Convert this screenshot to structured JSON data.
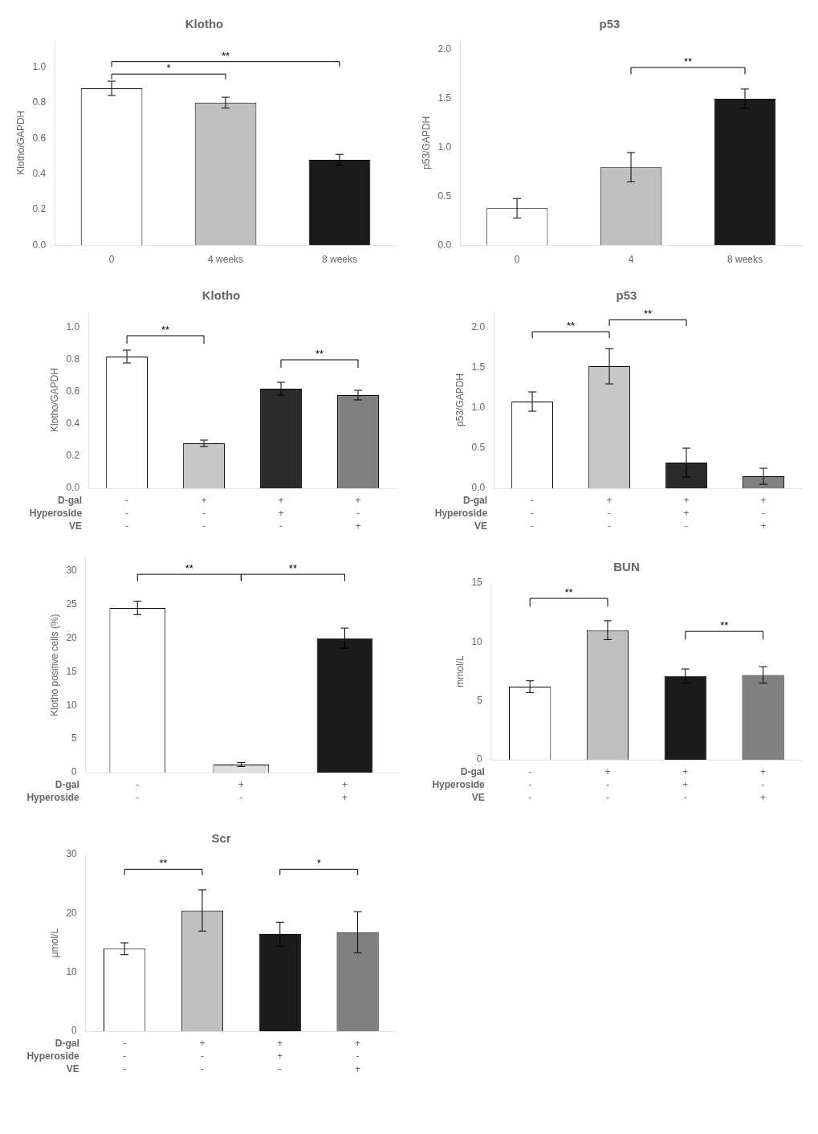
{
  "chart_data": [
    {
      "type": "bar",
      "title": "Klotho",
      "ylabel": "Klotho/GAPDH",
      "categories": [
        "0",
        "4 weeks",
        "8 weeks"
      ],
      "values": [
        0.88,
        0.8,
        0.48
      ],
      "errors": [
        0.04,
        0.03,
        0.03
      ],
      "colors": [
        "white",
        "#c0c0c0",
        "#1a1a1a"
      ],
      "ylim": [
        0.0,
        1.15
      ],
      "yticks": [
        {
          "value": 0,
          "label": "0.0"
        },
        0.2,
        0.4,
        0.6,
        0.8,
        {
          "value": 1,
          "label": "1.0"
        }
      ],
      "grid": false,
      "annotations": [
        {
          "text": "*",
          "between": [
            0,
            1
          ],
          "y_start": 0.93,
          "y": 0.96
        },
        {
          "text": "**",
          "between": [
            0,
            2
          ],
          "y_start": 1.0,
          "y": 1.03
        }
      ]
    },
    {
      "type": "bar",
      "title": "p53",
      "ylabel": "p53/GAPDH",
      "categories": [
        "0",
        "4",
        "8 weeks"
      ],
      "values": [
        0.38,
        0.8,
        1.5
      ],
      "errors": [
        0.1,
        0.15,
        0.1
      ],
      "colors": [
        "white",
        "#c0c0c0",
        "#1a1a1a"
      ],
      "ylim": [
        0.0,
        2.1
      ],
      "yticks": [
        {
          "value": 0,
          "label": "0.0"
        },
        0.5,
        {
          "value": 1,
          "label": "1.0"
        },
        1.5,
        {
          "value": 2,
          "label": "2.0"
        }
      ],
      "grid": false,
      "annotations": [
        {
          "text": "**",
          "between": [
            1,
            2
          ],
          "y_start": 1.75,
          "y": 1.82
        }
      ]
    },
    {
      "type": "bar",
      "title": "Klotho",
      "ylabel": "Klotho/GAPDH",
      "category_rows": [
        "D-gal",
        "Hyperoside",
        "VE"
      ],
      "categories": [
        [
          "-",
          "-",
          "-"
        ],
        [
          "+",
          "-",
          "-"
        ],
        [
          "+",
          "+",
          "-"
        ],
        [
          "+",
          "-",
          "+"
        ]
      ],
      "values": [
        0.82,
        0.28,
        0.62,
        0.58
      ],
      "errors": [
        0.04,
        0.02,
        0.04,
        0.03
      ],
      "colors": [
        "white",
        "#c8c8c8",
        "#2a2a2a",
        "#808080"
      ],
      "ylim": [
        0.0,
        1.1
      ],
      "yticks": [
        {
          "value": 0,
          "label": "0.0"
        },
        0.2,
        0.4,
        0.6,
        0.8,
        {
          "value": 1,
          "label": "1.0"
        }
      ],
      "grid": false,
      "annotations": [
        {
          "text": "**",
          "between": [
            0,
            1
          ],
          "y_start": 0.9,
          "y": 0.95
        },
        {
          "text": "**",
          "between": [
            2,
            3
          ],
          "y_start": 0.75,
          "y": 0.8
        }
      ]
    },
    {
      "type": "bar",
      "title": "p53",
      "ylabel": "p53/GAPDH",
      "category_rows": [
        "D-gal",
        "Hyperoside",
        "VE"
      ],
      "categories": [
        [
          "-",
          "-",
          "-"
        ],
        [
          "+",
          "-",
          "-"
        ],
        [
          "+",
          "+",
          "-"
        ],
        [
          "+",
          "-",
          "+"
        ]
      ],
      "values": [
        1.08,
        1.52,
        0.32,
        0.15
      ],
      "errors": [
        0.12,
        0.22,
        0.18,
        0.1
      ],
      "colors": [
        "white",
        "#c8c8c8",
        "#2a2a2a",
        "#808080"
      ],
      "ylim": [
        0.0,
        2.2
      ],
      "yticks": [
        {
          "value": 0,
          "label": "0.0"
        },
        0.5,
        {
          "value": 1,
          "label": "1.0"
        },
        1.5,
        {
          "value": 2,
          "label": "2.0"
        }
      ],
      "grid": false,
      "annotations": [
        {
          "text": "**",
          "between": [
            0,
            1
          ],
          "y_start": 1.87,
          "y": 1.95
        },
        {
          "text": "**",
          "between": [
            1,
            2
          ],
          "y_start": 2.02,
          "y": 2.1
        }
      ]
    },
    {
      "type": "bar",
      "ylabel": "Klotho positive cells (%)",
      "category_rows": [
        "D-gal",
        "Hyperoside"
      ],
      "categories": [
        [
          "-",
          "-"
        ],
        [
          "+",
          "-"
        ],
        [
          "+",
          "+"
        ]
      ],
      "values": [
        24.5,
        1.2,
        20.0
      ],
      "errors": [
        1.0,
        0.3,
        1.5
      ],
      "colors": [
        "white",
        "#e0e0e0",
        "#1a1a1a"
      ],
      "ylim": [
        0,
        32
      ],
      "yticks": [
        0,
        5,
        10,
        15,
        20,
        25,
        30
      ],
      "grid": false,
      "annotations": [
        {
          "text": "**",
          "between": [
            0,
            1
          ],
          "y_start": 28.5,
          "y": 29.5
        },
        {
          "text": "**",
          "between": [
            1,
            2
          ],
          "y_start": 28.5,
          "y": 29.5
        }
      ]
    },
    {
      "type": "bar",
      "title": "BUN",
      "ylabel": "mmol/L",
      "category_rows": [
        "D-gal",
        "Hyperoside",
        "VE"
      ],
      "categories": [
        [
          "-",
          "-",
          "-"
        ],
        [
          "+",
          "-",
          "-"
        ],
        [
          "+",
          "+",
          "-"
        ],
        [
          "+",
          "-",
          "+"
        ]
      ],
      "values": [
        6.2,
        11.0,
        7.1,
        7.2
      ],
      "errors": [
        0.5,
        0.8,
        0.6,
        0.7
      ],
      "colors": [
        "white",
        "#c0c0c0",
        "#1a1a1a",
        "#808080"
      ],
      "ylim": [
        0,
        15
      ],
      "yticks": [
        0,
        5,
        10,
        15
      ],
      "grid": false,
      "annotations": [
        {
          "text": "**",
          "between": [
            0,
            1
          ],
          "y_start": 13.0,
          "y": 13.7
        },
        {
          "text": "**",
          "between": [
            2,
            3
          ],
          "y_start": 10.2,
          "y": 10.9
        }
      ]
    },
    {
      "type": "bar",
      "title": "Scr",
      "ylabel": "μmol/L",
      "category_rows": [
        "D-gal",
        "Hyperoside",
        "VE"
      ],
      "categories": [
        [
          "-",
          "-",
          "-"
        ],
        [
          "+",
          "-",
          "-"
        ],
        [
          "+",
          "+",
          "-"
        ],
        [
          "+",
          "-",
          "+"
        ]
      ],
      "values": [
        14.0,
        20.5,
        16.5,
        16.8
      ],
      "errors": [
        1.0,
        3.5,
        2.0,
        3.5
      ],
      "colors": [
        "white",
        "#c0c0c0",
        "#1a1a1a",
        "#808080"
      ],
      "ylim": [
        0,
        30
      ],
      "yticks": [
        0,
        10,
        20,
        30
      ],
      "grid": false,
      "annotations": [
        {
          "text": "**",
          "between": [
            0,
            1
          ],
          "y_start": 26.5,
          "y": 27.5
        },
        {
          "text": "*",
          "between": [
            2,
            3
          ],
          "y_start": 26.5,
          "y": 27.5
        }
      ]
    }
  ]
}
